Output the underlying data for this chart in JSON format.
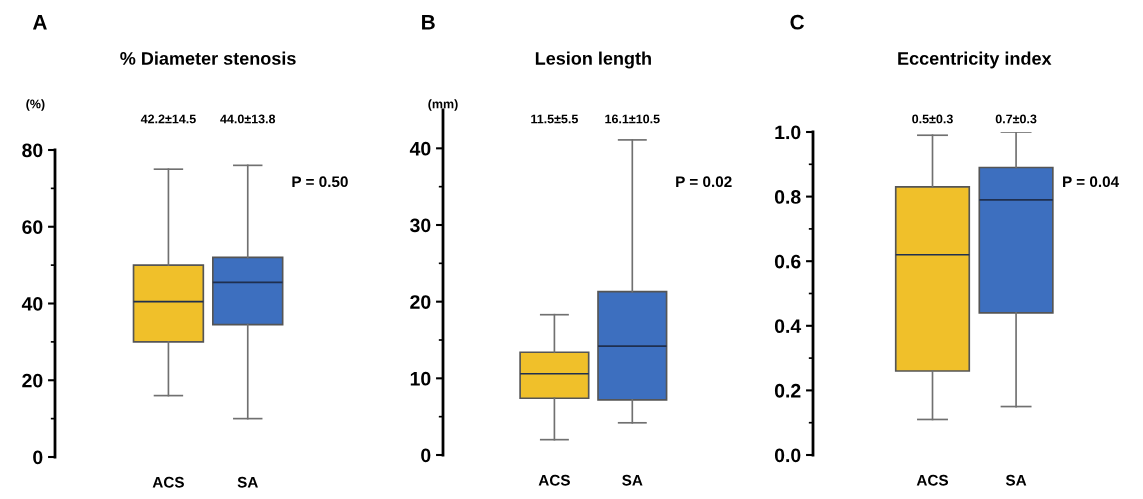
{
  "chart_data": [
    {
      "type": "box",
      "title": "% Diameter stenosis",
      "ylabel": "(%)",
      "categories": [
        "ACS",
        "SA"
      ],
      "colors": [
        "#f0c02a",
        "#3d6fbf"
      ],
      "boxes": [
        {
          "low": 16,
          "q1": 30,
          "median": 40.5,
          "q3": 50,
          "high": 75
        },
        {
          "low": 10,
          "q1": 34.5,
          "median": 45.5,
          "q3": 52,
          "high": 76
        }
      ],
      "ylim": [
        0,
        80
      ],
      "yticks": [
        0,
        20,
        40,
        60,
        80
      ],
      "annotations": [
        "A",
        "42.2±14.5",
        "44.0±13.8",
        "P = 0.50"
      ]
    },
    {
      "type": "box",
      "title": "Lesion length",
      "ylabel": "(mm)",
      "categories": [
        "ACS",
        "SA"
      ],
      "colors": [
        "#f0c02a",
        "#3d6fbf"
      ],
      "boxes": [
        {
          "low": 2.0,
          "q1": 7.4,
          "median": 10.6,
          "q3": 13.4,
          "high": 18.3
        },
        {
          "low": 4.2,
          "q1": 7.2,
          "median": 14.2,
          "q3": 21.3,
          "high": 41.1
        }
      ],
      "ylim": [
        0,
        45
      ],
      "yticks": [
        0,
        10,
        20,
        30,
        40
      ],
      "annotations": [
        "B",
        "11.5±5.5",
        "16.1±10.5",
        "P = 0.02"
      ]
    },
    {
      "type": "box",
      "title": "Eccentricity index",
      "categories": [
        "ACS",
        "SA"
      ],
      "colors": [
        "#f0c02a",
        "#3d6fbf"
      ],
      "boxes": [
        {
          "low": 0.11,
          "q1": 0.26,
          "median": 0.62,
          "q3": 0.83,
          "high": 0.99
        },
        {
          "low": 0.15,
          "q1": 0.44,
          "median": 0.79,
          "q3": 0.89,
          "high": 1.0
        }
      ],
      "ylim": [
        0,
        1.0
      ],
      "yticks": [
        {
          "value": 0,
          "label": "0.0"
        },
        {
          "value": 0.2,
          "label": "0.2"
        },
        {
          "value": 0.4,
          "label": "0.4"
        },
        {
          "value": 0.6,
          "label": "0.6"
        },
        {
          "value": 0.8,
          "label": "0.8"
        },
        {
          "value": 1.0,
          "label": "1.0"
        }
      ],
      "annotations": [
        "C",
        "0.5±0.3",
        "0.7±0.3",
        "P = 0.04"
      ]
    }
  ]
}
